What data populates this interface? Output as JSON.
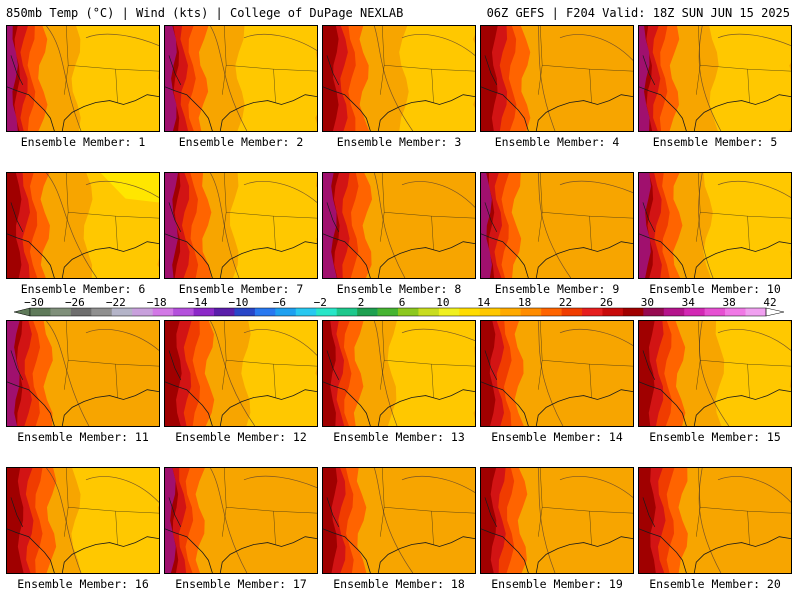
{
  "header": {
    "left": "850mb Temp (°C) | Wind (kts) | College of DuPage NEXLAB",
    "right": "06Z GEFS | F204 Valid: 18Z SUN JUN 15 2025"
  },
  "panels": [
    {
      "label": "Ensemble Member: 1"
    },
    {
      "label": "Ensemble Member: 2"
    },
    {
      "label": "Ensemble Member: 3"
    },
    {
      "label": "Ensemble Member: 4"
    },
    {
      "label": "Ensemble Member: 5"
    },
    {
      "label": "Ensemble Member: 6"
    },
    {
      "label": "Ensemble Member: 7"
    },
    {
      "label": "Ensemble Member: 8"
    },
    {
      "label": "Ensemble Member: 9"
    },
    {
      "label": "Ensemble Member: 10"
    },
    {
      "label": "Ensemble Member: 11"
    },
    {
      "label": "Ensemble Member: 12"
    },
    {
      "label": "Ensemble Member: 13"
    },
    {
      "label": "Ensemble Member: 14"
    },
    {
      "label": "Ensemble Member: 15"
    },
    {
      "label": "Ensemble Member: 16"
    },
    {
      "label": "Ensemble Member: 17"
    },
    {
      "label": "Ensemble Member: 18"
    },
    {
      "label": "Ensemble Member: 19"
    },
    {
      "label": "Ensemble Member: 20"
    }
  ],
  "colorbar": {
    "labels": [
      "−30",
      "−26",
      "−22",
      "−18",
      "−14",
      "−10",
      "−6",
      "−2",
      "2",
      "6",
      "10",
      "14",
      "18",
      "22",
      "26",
      "30",
      "34",
      "38",
      "42"
    ],
    "colors": [
      "#5f7a5a",
      "#7f8f7a",
      "#6e6e6e",
      "#8f8f8f",
      "#b4b4c8",
      "#c8a0dc",
      "#d278e6",
      "#b450dc",
      "#8c28c8",
      "#5a1eaa",
      "#2846c8",
      "#2878f0",
      "#1ea0f0",
      "#28c8f0",
      "#28e6c8",
      "#1ec88c",
      "#1ea050",
      "#46b432",
      "#8cc81e",
      "#c8dc1e",
      "#f0f01e",
      "#ffdc00",
      "#ffc800",
      "#ffaa00",
      "#ff8c00",
      "#ff6400",
      "#f03c00",
      "#e61e1e",
      "#c80a0a",
      "#a00000",
      "#960a50",
      "#b4148c",
      "#d228b4",
      "#e650d2",
      "#f078e6",
      "#f0a0f0"
    ]
  },
  "map_colors": {
    "deep_purple": "#a0106e",
    "magenta": "#b4148c",
    "dark_red": "#a00000",
    "red": "#d21414",
    "red_orange": "#f03c00",
    "orange_red": "#ff6400",
    "orange": "#f7a500",
    "gold": "#ffc800",
    "yellow": "#ffe600"
  }
}
